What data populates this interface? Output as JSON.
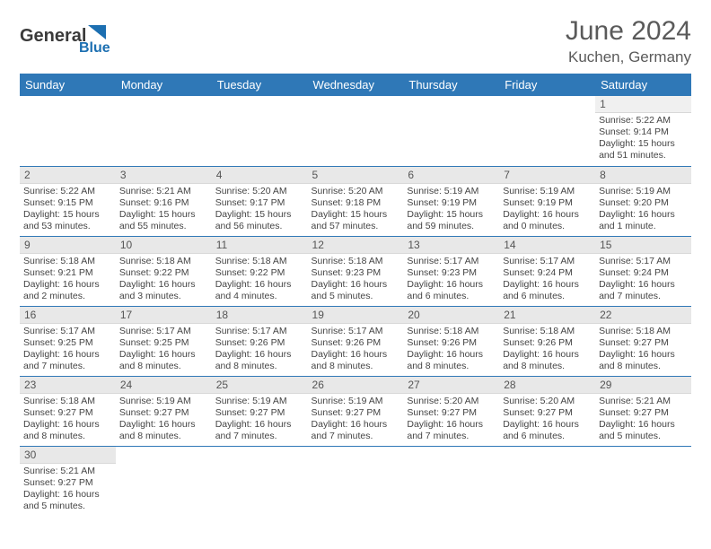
{
  "brand": {
    "name1": "General",
    "name2": "Blue"
  },
  "title": "June 2024",
  "location": "Kuchen, Germany",
  "colors": {
    "header_bg": "#2f78b7",
    "header_text": "#ffffff",
    "daynum_bg": "#e8e8e8",
    "row_border": "#2f78b7",
    "text": "#444444",
    "title_color": "#5a5a5a",
    "logo_blue": "#1c6fb1"
  },
  "weekdays": [
    "Sunday",
    "Monday",
    "Tuesday",
    "Wednesday",
    "Thursday",
    "Friday",
    "Saturday"
  ],
  "weeks": [
    [
      {
        "n": "",
        "sr": "",
        "ss": "",
        "dl": ""
      },
      {
        "n": "",
        "sr": "",
        "ss": "",
        "dl": ""
      },
      {
        "n": "",
        "sr": "",
        "ss": "",
        "dl": ""
      },
      {
        "n": "",
        "sr": "",
        "ss": "",
        "dl": ""
      },
      {
        "n": "",
        "sr": "",
        "ss": "",
        "dl": ""
      },
      {
        "n": "",
        "sr": "",
        "ss": "",
        "dl": ""
      },
      {
        "n": "1",
        "sr": "Sunrise: 5:22 AM",
        "ss": "Sunset: 9:14 PM",
        "dl": "Daylight: 15 hours and 51 minutes."
      }
    ],
    [
      {
        "n": "2",
        "sr": "Sunrise: 5:22 AM",
        "ss": "Sunset: 9:15 PM",
        "dl": "Daylight: 15 hours and 53 minutes."
      },
      {
        "n": "3",
        "sr": "Sunrise: 5:21 AM",
        "ss": "Sunset: 9:16 PM",
        "dl": "Daylight: 15 hours and 55 minutes."
      },
      {
        "n": "4",
        "sr": "Sunrise: 5:20 AM",
        "ss": "Sunset: 9:17 PM",
        "dl": "Daylight: 15 hours and 56 minutes."
      },
      {
        "n": "5",
        "sr": "Sunrise: 5:20 AM",
        "ss": "Sunset: 9:18 PM",
        "dl": "Daylight: 15 hours and 57 minutes."
      },
      {
        "n": "6",
        "sr": "Sunrise: 5:19 AM",
        "ss": "Sunset: 9:19 PM",
        "dl": "Daylight: 15 hours and 59 minutes."
      },
      {
        "n": "7",
        "sr": "Sunrise: 5:19 AM",
        "ss": "Sunset: 9:19 PM",
        "dl": "Daylight: 16 hours and 0 minutes."
      },
      {
        "n": "8",
        "sr": "Sunrise: 5:19 AM",
        "ss": "Sunset: 9:20 PM",
        "dl": "Daylight: 16 hours and 1 minute."
      }
    ],
    [
      {
        "n": "9",
        "sr": "Sunrise: 5:18 AM",
        "ss": "Sunset: 9:21 PM",
        "dl": "Daylight: 16 hours and 2 minutes."
      },
      {
        "n": "10",
        "sr": "Sunrise: 5:18 AM",
        "ss": "Sunset: 9:22 PM",
        "dl": "Daylight: 16 hours and 3 minutes."
      },
      {
        "n": "11",
        "sr": "Sunrise: 5:18 AM",
        "ss": "Sunset: 9:22 PM",
        "dl": "Daylight: 16 hours and 4 minutes."
      },
      {
        "n": "12",
        "sr": "Sunrise: 5:18 AM",
        "ss": "Sunset: 9:23 PM",
        "dl": "Daylight: 16 hours and 5 minutes."
      },
      {
        "n": "13",
        "sr": "Sunrise: 5:17 AM",
        "ss": "Sunset: 9:23 PM",
        "dl": "Daylight: 16 hours and 6 minutes."
      },
      {
        "n": "14",
        "sr": "Sunrise: 5:17 AM",
        "ss": "Sunset: 9:24 PM",
        "dl": "Daylight: 16 hours and 6 minutes."
      },
      {
        "n": "15",
        "sr": "Sunrise: 5:17 AM",
        "ss": "Sunset: 9:24 PM",
        "dl": "Daylight: 16 hours and 7 minutes."
      }
    ],
    [
      {
        "n": "16",
        "sr": "Sunrise: 5:17 AM",
        "ss": "Sunset: 9:25 PM",
        "dl": "Daylight: 16 hours and 7 minutes."
      },
      {
        "n": "17",
        "sr": "Sunrise: 5:17 AM",
        "ss": "Sunset: 9:25 PM",
        "dl": "Daylight: 16 hours and 8 minutes."
      },
      {
        "n": "18",
        "sr": "Sunrise: 5:17 AM",
        "ss": "Sunset: 9:26 PM",
        "dl": "Daylight: 16 hours and 8 minutes."
      },
      {
        "n": "19",
        "sr": "Sunrise: 5:17 AM",
        "ss": "Sunset: 9:26 PM",
        "dl": "Daylight: 16 hours and 8 minutes."
      },
      {
        "n": "20",
        "sr": "Sunrise: 5:18 AM",
        "ss": "Sunset: 9:26 PM",
        "dl": "Daylight: 16 hours and 8 minutes."
      },
      {
        "n": "21",
        "sr": "Sunrise: 5:18 AM",
        "ss": "Sunset: 9:26 PM",
        "dl": "Daylight: 16 hours and 8 minutes."
      },
      {
        "n": "22",
        "sr": "Sunrise: 5:18 AM",
        "ss": "Sunset: 9:27 PM",
        "dl": "Daylight: 16 hours and 8 minutes."
      }
    ],
    [
      {
        "n": "23",
        "sr": "Sunrise: 5:18 AM",
        "ss": "Sunset: 9:27 PM",
        "dl": "Daylight: 16 hours and 8 minutes."
      },
      {
        "n": "24",
        "sr": "Sunrise: 5:19 AM",
        "ss": "Sunset: 9:27 PM",
        "dl": "Daylight: 16 hours and 8 minutes."
      },
      {
        "n": "25",
        "sr": "Sunrise: 5:19 AM",
        "ss": "Sunset: 9:27 PM",
        "dl": "Daylight: 16 hours and 7 minutes."
      },
      {
        "n": "26",
        "sr": "Sunrise: 5:19 AM",
        "ss": "Sunset: 9:27 PM",
        "dl": "Daylight: 16 hours and 7 minutes."
      },
      {
        "n": "27",
        "sr": "Sunrise: 5:20 AM",
        "ss": "Sunset: 9:27 PM",
        "dl": "Daylight: 16 hours and 7 minutes."
      },
      {
        "n": "28",
        "sr": "Sunrise: 5:20 AM",
        "ss": "Sunset: 9:27 PM",
        "dl": "Daylight: 16 hours and 6 minutes."
      },
      {
        "n": "29",
        "sr": "Sunrise: 5:21 AM",
        "ss": "Sunset: 9:27 PM",
        "dl": "Daylight: 16 hours and 5 minutes."
      }
    ],
    [
      {
        "n": "30",
        "sr": "Sunrise: 5:21 AM",
        "ss": "Sunset: 9:27 PM",
        "dl": "Daylight: 16 hours and 5 minutes."
      },
      {
        "n": "",
        "sr": "",
        "ss": "",
        "dl": ""
      },
      {
        "n": "",
        "sr": "",
        "ss": "",
        "dl": ""
      },
      {
        "n": "",
        "sr": "",
        "ss": "",
        "dl": ""
      },
      {
        "n": "",
        "sr": "",
        "ss": "",
        "dl": ""
      },
      {
        "n": "",
        "sr": "",
        "ss": "",
        "dl": ""
      },
      {
        "n": "",
        "sr": "",
        "ss": "",
        "dl": ""
      }
    ]
  ]
}
